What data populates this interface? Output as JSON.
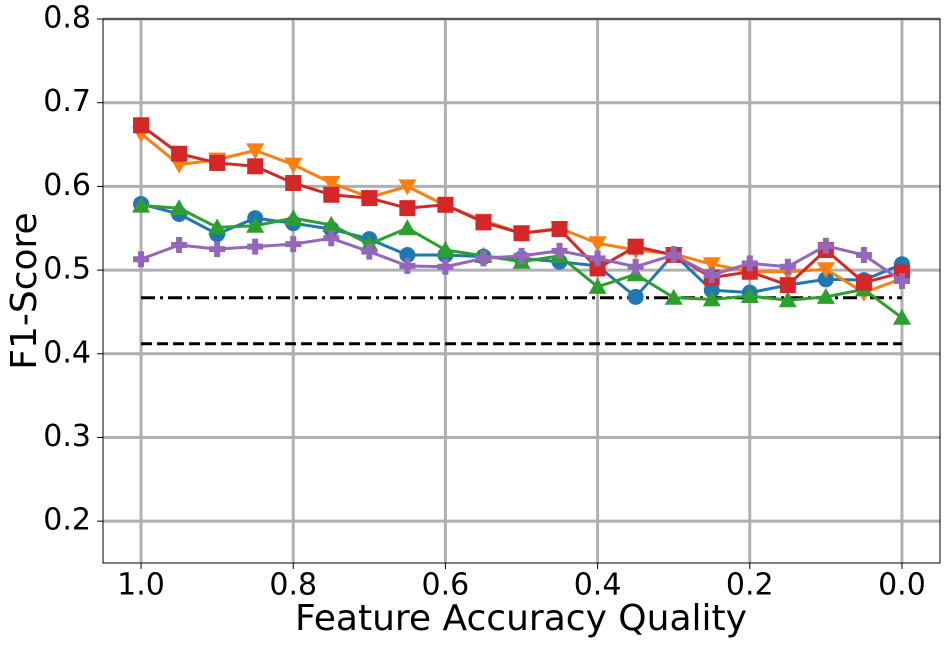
{
  "chart_data": {
    "type": "line",
    "x_label": "Feature Accuracy Quality",
    "y_label": "F1-Score",
    "x": [
      1.0,
      0.95,
      0.9,
      0.85,
      0.8,
      0.75,
      0.7,
      0.65,
      0.6,
      0.55,
      0.5,
      0.45,
      0.4,
      0.35,
      0.3,
      0.25,
      0.2,
      0.15,
      0.1,
      0.05,
      0.0
    ],
    "series": [
      {
        "color": "#1f77b4",
        "marker": "circle",
        "values": [
          0.579,
          0.567,
          0.543,
          0.562,
          0.556,
          0.549,
          0.537,
          0.518,
          0.518,
          0.516,
          0.514,
          0.51,
          0.505,
          0.468,
          0.519,
          0.476,
          0.473,
          0.482,
          0.489,
          0.488,
          0.507
        ]
      },
      {
        "color": "#ff7f0e",
        "marker": "triangle-down",
        "values": [
          0.663,
          0.626,
          0.632,
          0.643,
          0.626,
          0.604,
          0.587,
          0.6,
          0.577,
          0.559,
          0.544,
          0.55,
          0.532,
          0.524,
          0.519,
          0.507,
          0.498,
          0.498,
          0.501,
          0.473,
          0.49
        ]
      },
      {
        "color": "#2ca02c",
        "marker": "triangle-up",
        "values": [
          0.577,
          0.574,
          0.551,
          0.553,
          0.562,
          0.554,
          0.531,
          0.55,
          0.524,
          0.517,
          0.51,
          0.517,
          0.48,
          0.495,
          0.467,
          0.465,
          0.469,
          0.464,
          0.468,
          0.477,
          0.443
        ]
      },
      {
        "color": "#d62728",
        "marker": "square",
        "values": [
          0.673,
          0.639,
          0.628,
          0.624,
          0.604,
          0.59,
          0.586,
          0.574,
          0.578,
          0.557,
          0.544,
          0.549,
          0.502,
          0.528,
          0.518,
          0.491,
          0.498,
          0.482,
          0.524,
          0.485,
          0.497
        ]
      },
      {
        "color": "#9467bd",
        "marker": "plus",
        "values": [
          0.513,
          0.53,
          0.525,
          0.528,
          0.531,
          0.538,
          0.522,
          0.505,
          0.504,
          0.514,
          0.517,
          0.523,
          0.514,
          0.504,
          0.518,
          0.494,
          0.508,
          0.504,
          0.529,
          0.518,
          0.487
        ]
      }
    ],
    "reference_lines": [
      {
        "value": 0.467,
        "style": "dashdot",
        "color": "#000000",
        "x": [
          1.0,
          0.0
        ]
      },
      {
        "value": 0.412,
        "style": "dashed",
        "color": "#000000",
        "x": [
          1.0,
          0.0
        ]
      }
    ],
    "xlim": [
      1.05,
      -0.05
    ],
    "xticks": [
      {
        "value": 1,
        "label": "1.0"
      },
      0.8,
      0.6,
      0.4,
      0.2,
      {
        "value": 0,
        "label": "0.0"
      }
    ],
    "ylim": [
      0.15,
      0.8
    ],
    "yticks": [
      0.2,
      0.3,
      0.4,
      0.5,
      0.6,
      0.7,
      0.8
    ],
    "grid": true
  }
}
